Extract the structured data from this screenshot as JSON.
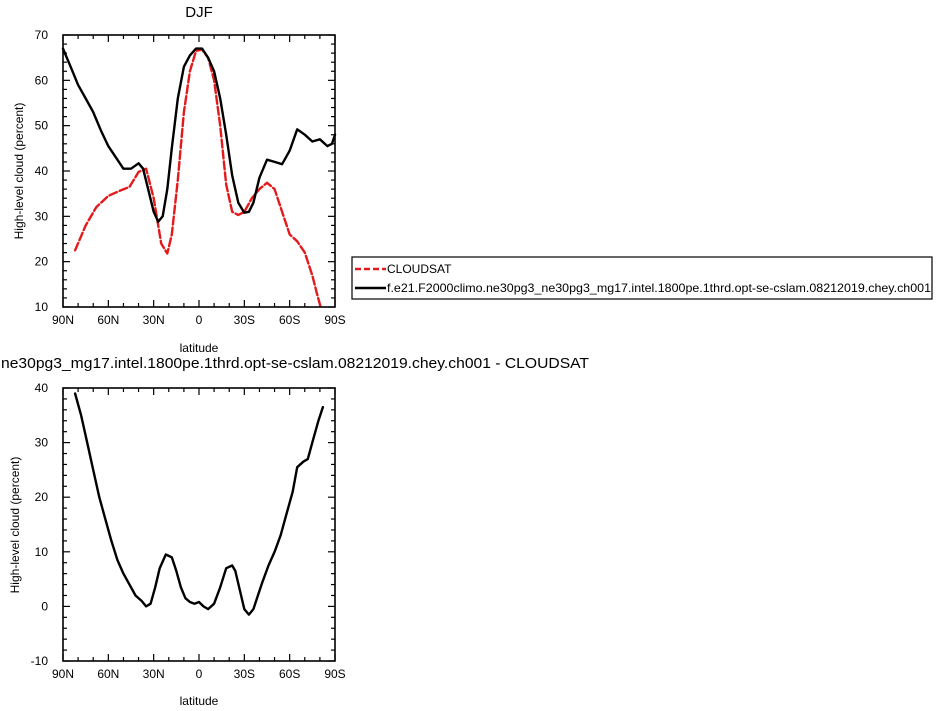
{
  "chart_data": [
    {
      "type": "line",
      "title": "DJF",
      "xlabel": "latitude",
      "ylabel": "High-level cloud (percent)",
      "xlim": [
        90,
        -90
      ],
      "ylim": [
        10,
        70
      ],
      "x_ticks": [
        {
          "v": 90,
          "label": "90N"
        },
        {
          "v": 60,
          "label": "60N"
        },
        {
          "v": 30,
          "label": "30N"
        },
        {
          "v": 0,
          "label": "0"
        },
        {
          "v": -30,
          "label": "30S"
        },
        {
          "v": -60,
          "label": "60S"
        },
        {
          "v": -90,
          "label": "90S"
        }
      ],
      "y_ticks": [
        10,
        20,
        30,
        40,
        50,
        60,
        70
      ],
      "series": [
        {
          "name": "CLOUDSAT",
          "color": "#e31a1c",
          "dash": "dashed",
          "x": [
            82,
            75,
            68,
            60,
            52,
            46,
            40,
            35,
            30,
            25,
            21,
            18,
            14,
            10,
            6,
            2,
            -2,
            -6,
            -10,
            -14,
            -18,
            -22,
            -26,
            -30,
            -35,
            -40,
            -45,
            -50,
            -55,
            -60,
            -65,
            -70,
            -75,
            -78,
            -80.5
          ],
          "y": [
            22.5,
            28,
            32,
            34.5,
            35.7,
            36.5,
            39.8,
            40.5,
            34,
            24,
            21.8,
            26,
            38,
            53,
            62,
            66.5,
            66.8,
            65,
            60,
            50,
            37,
            31,
            30.3,
            31,
            34,
            36,
            37.4,
            36,
            31,
            26,
            24.5,
            22,
            17,
            13,
            10
          ]
        },
        {
          "name": "f.e21.F2000climo.ne30pg3_ne30pg3_mg17.intel.1800pe.1thrd.opt-se-cslam.08212019.chey.ch001",
          "color": "#000000",
          "dash": "solid",
          "x": [
            90,
            85,
            80,
            75,
            70,
            65,
            60,
            55,
            50,
            45,
            40,
            37,
            34,
            30,
            27,
            24,
            21,
            18,
            14,
            10,
            6,
            2,
            -2,
            -6,
            -10,
            -14,
            -18,
            -22,
            -26,
            -30,
            -33,
            -36,
            -40,
            -45,
            -50,
            -55,
            -60,
            -65,
            -70,
            -75,
            -80,
            -85,
            -88,
            -90
          ],
          "y": [
            67,
            63,
            59,
            56,
            53,
            49,
            45.5,
            43,
            40.5,
            40.5,
            41.7,
            40.5,
            36.5,
            31,
            28.8,
            30,
            36,
            45,
            56,
            63,
            65.5,
            67,
            67,
            65,
            62,
            56,
            48,
            39,
            33,
            30.8,
            31,
            33,
            38.5,
            42.5,
            42,
            41.5,
            44.5,
            49.2,
            48,
            46.5,
            47,
            45.5,
            46,
            48
          ]
        }
      ],
      "legend": {
        "placement": "right",
        "entries": [
          {
            "label": "CLOUDSAT"
          },
          {
            "label": "f.e21.F2000climo.ne30pg3_ne30pg3_mg17.intel.1800pe.1thrd.opt-se-cslam.08212019.chey.ch001"
          }
        ]
      }
    },
    {
      "type": "line",
      "title": "ne30pg3_mg17.intel.1800pe.1thrd.opt-se-cslam.08212019.chey.ch001 - CLOUDSAT",
      "xlabel": "latitude",
      "ylabel": "High-level cloud (percent)",
      "xlim": [
        90,
        -90
      ],
      "ylim": [
        -10,
        40
      ],
      "x_ticks": [
        {
          "v": 90,
          "label": "90N"
        },
        {
          "v": 60,
          "label": "60N"
        },
        {
          "v": 30,
          "label": "30N"
        },
        {
          "v": 0,
          "label": "0"
        },
        {
          "v": -30,
          "label": "30S"
        },
        {
          "v": -60,
          "label": "60S"
        },
        {
          "v": -90,
          "label": "90S"
        }
      ],
      "y_ticks": [
        -10,
        0,
        10,
        20,
        30,
        40
      ],
      "series": [
        {
          "color": "#000000",
          "dash": "solid",
          "x": [
            82,
            78,
            74,
            70,
            66,
            62,
            58,
            54,
            50,
            46,
            42,
            38,
            35,
            32,
            29,
            26,
            22,
            18,
            15,
            12,
            9,
            6,
            3,
            0,
            -3,
            -6,
            -10,
            -14,
            -18,
            -22,
            -24,
            -27,
            -30,
            -33,
            -36,
            -39,
            -42,
            -46,
            -50,
            -54,
            -58,
            -62,
            -65,
            -69,
            -72,
            -75,
            -79,
            -82
          ],
          "y": [
            39,
            35,
            30,
            25,
            20,
            16,
            12,
            8.5,
            6,
            4,
            2,
            1,
            0,
            0.5,
            3.5,
            7,
            9.5,
            9,
            6.5,
            3.5,
            1.5,
            0.8,
            0.5,
            0.8,
            0,
            -0.5,
            0.5,
            3.5,
            7,
            7.5,
            6.5,
            3,
            -0.5,
            -1.5,
            -0.5,
            2,
            4.5,
            7.5,
            10,
            13,
            17,
            21,
            25.5,
            26.5,
            27,
            30,
            34,
            36.5
          ]
        }
      ]
    }
  ]
}
